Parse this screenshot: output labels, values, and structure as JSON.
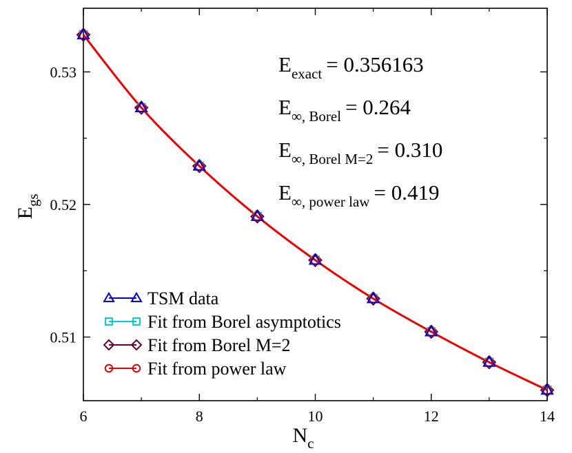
{
  "chart_data": {
    "type": "line",
    "xlabel": "N",
    "xlabel_sub": "c",
    "ylabel": "E",
    "ylabel_sub": "gs",
    "xlim": [
      6,
      14
    ],
    "ylim": [
      0.5052,
      0.5348
    ],
    "xticks": [
      6,
      8,
      10,
      12,
      14
    ],
    "xtick_labels": [
      "6",
      "8",
      "10",
      "12",
      "14"
    ],
    "yticks": [
      0.51,
      0.52,
      0.53
    ],
    "ytick_labels": [
      "0.51",
      "0.52",
      "0.53"
    ],
    "grid": false,
    "legend_position": "bottom-left",
    "colors": {
      "tsm": "#0000cc",
      "borel_asym": "#00cccc",
      "borel_m2": "#660033",
      "power_law": "#ee0000",
      "axis": "#000000"
    },
    "x": [
      6,
      7,
      8,
      9,
      10,
      11,
      12,
      13,
      14
    ],
    "series": [
      {
        "name": "TSM data",
        "marker": "triangle",
        "values": [
          0.5328,
          0.5273,
          0.5229,
          0.5191,
          0.5158,
          0.5129,
          0.5104,
          0.5081,
          0.506
        ]
      },
      {
        "name": "Fit from Borel asymptotics",
        "marker": "square",
        "values": [
          0.5328,
          0.5273,
          0.5229,
          0.5191,
          0.5158,
          0.5129,
          0.5104,
          0.5081,
          0.506
        ]
      },
      {
        "name": "Fit from Borel M=2",
        "marker": "diamond",
        "values": [
          0.5328,
          0.5273,
          0.5229,
          0.5191,
          0.5158,
          0.5129,
          0.5104,
          0.5081,
          0.506
        ]
      },
      {
        "name": "Fit from power law",
        "marker": "circle",
        "values": [
          0.5328,
          0.5273,
          0.5229,
          0.5191,
          0.5158,
          0.5129,
          0.5104,
          0.5081,
          0.506
        ]
      }
    ],
    "annotations": [
      {
        "main": "E",
        "sub": "exact",
        "value": "= 0.356163"
      },
      {
        "main": "E",
        "sub": "∞, Borel",
        "value": "= 0.264"
      },
      {
        "main": "E",
        "sub": "∞, Borel M=2",
        "value": "= 0.310"
      },
      {
        "main": "E",
        "sub": "∞, power law",
        "value": "= 0.419"
      }
    ]
  }
}
